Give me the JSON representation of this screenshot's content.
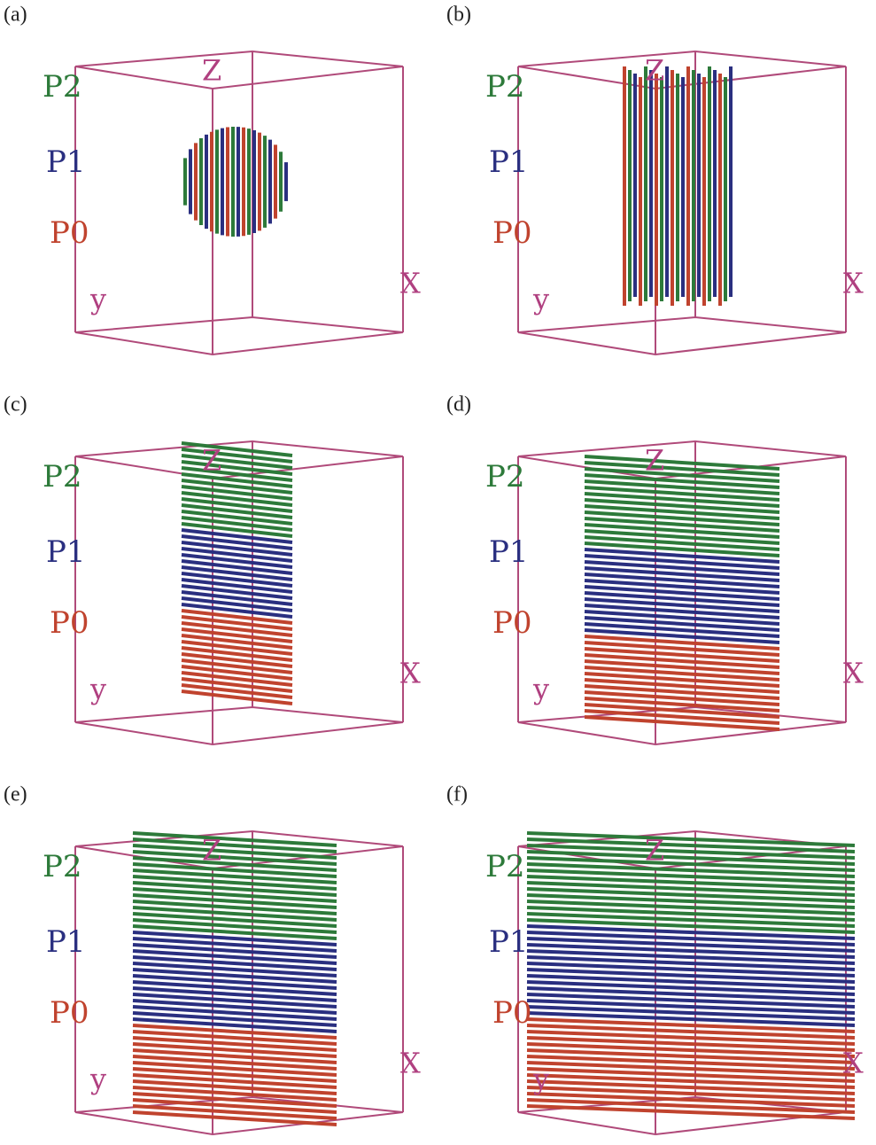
{
  "panels": [
    {
      "label": "(a)",
      "layers": [
        "P2",
        "P1",
        "P0"
      ],
      "axes": {
        "z": "Z",
        "x": "X",
        "y": "y"
      }
    },
    {
      "label": "(b)",
      "layers": [
        "P2",
        "P1",
        "P0"
      ],
      "axes": {
        "z": "Z",
        "x": "X",
        "y": "y"
      }
    },
    {
      "label": "(c)",
      "layers": [
        "P2",
        "P1",
        "P0"
      ],
      "axes": {
        "z": "Z",
        "x": "X",
        "y": "y"
      }
    },
    {
      "label": "(d)",
      "layers": [
        "P2",
        "P1",
        "P0"
      ],
      "axes": {
        "z": "Z",
        "x": "X",
        "y": "y"
      }
    },
    {
      "label": "(e)",
      "layers": [
        "P2",
        "P1",
        "P0"
      ],
      "axes": {
        "z": "Z",
        "x": "X",
        "y": "y"
      }
    },
    {
      "label": "(f)",
      "layers": [
        "P2",
        "P1",
        "P0"
      ],
      "axes": {
        "z": "Z",
        "x": "X",
        "y": "y"
      }
    }
  ]
}
